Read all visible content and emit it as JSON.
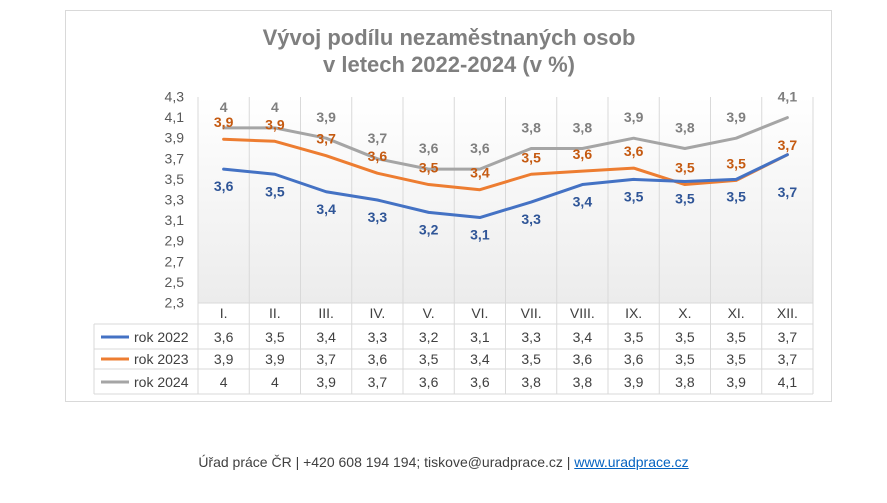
{
  "chart_data": {
    "type": "line",
    "title_line1": "Vývoj podílu nezaměstnaných osob",
    "title_line2": "v letech 2022-2024 (v %)",
    "categories": [
      "I.",
      "II.",
      "III.",
      "IV.",
      "V.",
      "VI.",
      "VII.",
      "VIII.",
      "IX.",
      "X.",
      "XI.",
      "XII."
    ],
    "series": [
      {
        "name": "rok 2022",
        "color": "#4472c4",
        "values": [
          3.6,
          3.55,
          3.38,
          3.3,
          3.18,
          3.13,
          3.28,
          3.45,
          3.5,
          3.48,
          3.5,
          3.74
        ],
        "labels": [
          "3,6",
          "3,5",
          "3,4",
          "3,3",
          "3,2",
          "3,1",
          "3,3",
          "3,4",
          "3,5",
          "3,5",
          "3,5",
          "3,7"
        ],
        "table": [
          "3,6",
          "3,5",
          "3,4",
          "3,3",
          "3,2",
          "3,1",
          "3,3",
          "3,4",
          "3,5",
          "3,5",
          "3,5",
          "3,7"
        ],
        "label_pos": "below"
      },
      {
        "name": "rok 2023",
        "color": "#ed7d31",
        "values": [
          3.89,
          3.87,
          3.73,
          3.56,
          3.45,
          3.4,
          3.55,
          3.58,
          3.61,
          3.45,
          3.49,
          3.74
        ],
        "labels": [
          "3,9",
          "3,9",
          "3,7",
          "3,6",
          "3,5",
          "3,4",
          "3,5",
          "3,6",
          "3,6",
          "3,5",
          "3,5",
          "3,7"
        ],
        "table": [
          "3,9",
          "3,9",
          "3,7",
          "3,6",
          "3,5",
          "3,4",
          "3,5",
          "3,6",
          "3,6",
          "3,5",
          "3,5",
          "3,7"
        ],
        "label_pos": "above"
      },
      {
        "name": "rok 2024",
        "color": "#a5a5a5",
        "values": [
          4.0,
          4.0,
          3.9,
          3.7,
          3.6,
          3.6,
          3.8,
          3.8,
          3.9,
          3.8,
          3.9,
          4.1
        ],
        "labels": [
          "4",
          "4",
          "3,9",
          "3,7",
          "3,6",
          "3,6",
          "3,8",
          "3,8",
          "3,9",
          "3,8",
          "3,9",
          "4,1"
        ],
        "table": [
          "4",
          "4",
          "3,9",
          "3,7",
          "3,6",
          "3,6",
          "3,8",
          "3,8",
          "3,9",
          "3,8",
          "3,9",
          "4,1"
        ],
        "label_pos": "above"
      }
    ],
    "yticks": [
      "4,3",
      "4,1",
      "3,9",
      "3,7",
      "3,5",
      "3,3",
      "3,1",
      "2,9",
      "2,7",
      "2,5",
      "2,3"
    ],
    "ylim": [
      2.3,
      4.3
    ],
    "grid": "vertical",
    "legend": "data-table"
  },
  "footer": {
    "text": "Úřad práce ČR | +420 608 194 194; tiskove@uradprace.cz | ",
    "link": "www.uradprace.cz"
  }
}
